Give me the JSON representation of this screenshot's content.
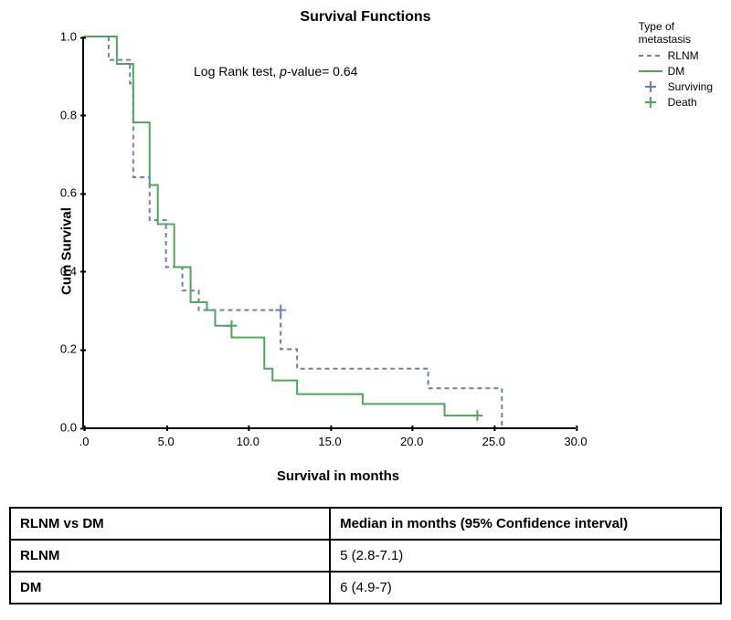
{
  "chart": {
    "title": "Survival Functions",
    "y_label": "Cum Survival",
    "x_label": "Survival in months",
    "annotation_prefix": "Log Rank test, ",
    "annotation_italic": "p",
    "annotation_suffix": "-value= 0.64",
    "ylim": [
      0,
      1.0
    ],
    "xlim": [
      0,
      30
    ],
    "y_ticks": [
      "0.0",
      "0.2",
      "0.4",
      "0.6",
      "0.8",
      "1.0"
    ],
    "x_ticks": [
      ".0",
      "5.0",
      "10.0",
      "15.0",
      "20.0",
      "25.0",
      "30.0"
    ],
    "background_color": "#ffffff",
    "axis_color": "#000000",
    "line_width": 2,
    "series": {
      "rlnm": {
        "color": "#6a7fb5",
        "dash": "5,4",
        "points": [
          [
            0,
            1.0
          ],
          [
            1.5,
            1.0
          ],
          [
            1.5,
            0.94
          ],
          [
            2.8,
            0.94
          ],
          [
            2.8,
            0.88
          ],
          [
            3.0,
            0.88
          ],
          [
            3.0,
            0.64
          ],
          [
            4.0,
            0.64
          ],
          [
            4.0,
            0.53
          ],
          [
            5.0,
            0.53
          ],
          [
            5.0,
            0.41
          ],
          [
            6.0,
            0.41
          ],
          [
            6.0,
            0.35
          ],
          [
            7.0,
            0.35
          ],
          [
            7.0,
            0.3
          ],
          [
            12.0,
            0.3
          ],
          [
            12.0,
            0.2
          ],
          [
            13.0,
            0.2
          ],
          [
            13.0,
            0.15
          ],
          [
            21.0,
            0.15
          ],
          [
            21.0,
            0.1
          ],
          [
            25.5,
            0.1
          ],
          [
            25.5,
            0.0
          ]
        ]
      },
      "dm": {
        "color": "#4fa65a",
        "dash": "none",
        "points": [
          [
            0,
            1.0
          ],
          [
            2.0,
            1.0
          ],
          [
            2.0,
            0.93
          ],
          [
            3.0,
            0.93
          ],
          [
            3.0,
            0.78
          ],
          [
            4.0,
            0.78
          ],
          [
            4.0,
            0.62
          ],
          [
            4.5,
            0.62
          ],
          [
            4.5,
            0.52
          ],
          [
            5.5,
            0.52
          ],
          [
            5.5,
            0.41
          ],
          [
            6.5,
            0.41
          ],
          [
            6.5,
            0.32
          ],
          [
            7.5,
            0.32
          ],
          [
            7.5,
            0.3
          ],
          [
            8.0,
            0.3
          ],
          [
            8.0,
            0.26
          ],
          [
            9.0,
            0.26
          ],
          [
            9.0,
            0.23
          ],
          [
            11.0,
            0.23
          ],
          [
            11.0,
            0.15
          ],
          [
            11.5,
            0.15
          ],
          [
            11.5,
            0.12
          ],
          [
            13.0,
            0.12
          ],
          [
            13.0,
            0.085
          ],
          [
            17.0,
            0.085
          ],
          [
            17.0,
            0.06
          ],
          [
            22.0,
            0.06
          ],
          [
            22.0,
            0.03
          ],
          [
            24.0,
            0.03
          ]
        ]
      }
    },
    "censor_rlnm": [
      [
        12.0,
        0.3
      ]
    ],
    "censor_dm": [
      [
        9.0,
        0.26
      ],
      [
        24.0,
        0.03
      ]
    ],
    "legend": {
      "title_l1": "Type of",
      "title_l2": "metastasis",
      "items": [
        {
          "label": "RLNM",
          "type": "line",
          "color": "#6a7fb5",
          "dash": "5,4"
        },
        {
          "label": "DM",
          "type": "line",
          "color": "#4fa65a",
          "dash": "none"
        },
        {
          "label": "Surviving",
          "type": "plus",
          "color": "#6a7fb5"
        },
        {
          "label": "Death",
          "type": "plus",
          "color": "#4fa65a"
        }
      ]
    }
  },
  "table": {
    "header_col1": "RLNM vs DM",
    "header_col2": "Median in months (95% Confidence interval)",
    "rows": [
      {
        "c1": "RLNM",
        "c2": "5 (2.8-7.1)"
      },
      {
        "c1": "DM",
        "c2": "6 (4.9-7)"
      }
    ]
  }
}
